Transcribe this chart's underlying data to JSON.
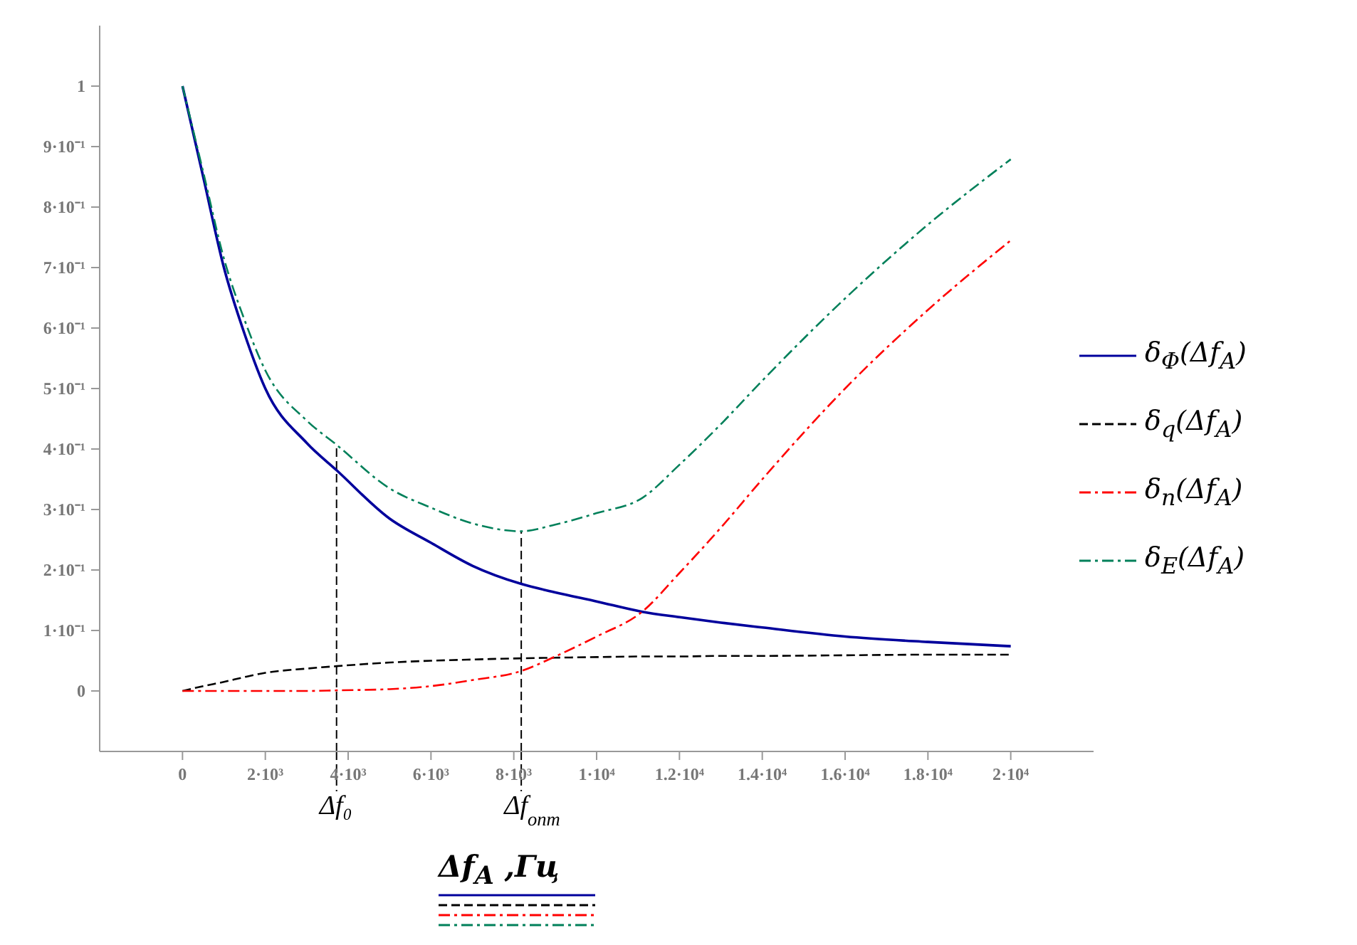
{
  "chart_data": {
    "type": "line",
    "xlabel": "Δf$_{A}$ ,Гц",
    "x": [
      0,
      500,
      1000,
      1500,
      2000,
      3000,
      3720,
      5000,
      6000,
      7000,
      8180,
      9000,
      10000,
      11100,
      12000,
      13000,
      14000,
      16000,
      18000,
      20000
    ],
    "series": [
      {
        "name": "δ$_{Φ}$(Δf$_{A}$)",
        "color": "#00009c",
        "line_style": "solid",
        "values": [
          1,
          0.85,
          0.7,
          0.59,
          0.5,
          0.41,
          0.365,
          0.285,
          0.245,
          0.207,
          0.177,
          0.163,
          0.148,
          0.131,
          0.122,
          0.113,
          0.105,
          0.09,
          0.081,
          0.074
        ]
      },
      {
        "name": "δ$_{q}$(Δf$_{A}$)",
        "color": "#000000",
        "line_style": "dashed",
        "values": [
          0,
          0.008,
          0.015,
          0.023,
          0.03,
          0.037,
          0.041,
          0.047,
          0.05,
          0.052,
          0.054,
          0.055,
          0.056,
          0.057,
          0.057,
          0.058,
          0.058,
          0.059,
          0.06,
          0.06
        ]
      },
      {
        "name": "δ$_{n}$(Δf$_{A}$)",
        "color": "#ff0000",
        "line_style": "dashdot",
        "values": [
          0,
          0,
          0,
          0,
          0,
          0,
          0.001,
          0.003,
          0.008,
          0.018,
          0.033,
          0.057,
          0.09,
          0.131,
          0.195,
          0.27,
          0.35,
          0.5,
          0.63,
          0.745
        ]
      },
      {
        "name": "δ$_{E}$(Δf$_{A}$)",
        "color": "#00805a",
        "line_style": "dashdot",
        "values": [
          1,
          0.858,
          0.715,
          0.613,
          0.53,
          0.447,
          0.407,
          0.335,
          0.303,
          0.277,
          0.264,
          0.275,
          0.294,
          0.319,
          0.374,
          0.441,
          0.513,
          0.649,
          0.771,
          0.879
        ]
      }
    ],
    "xlim": [
      -2000,
      22000
    ],
    "xticks": [
      {
        "value": 0,
        "label": "0"
      },
      {
        "value": 2000,
        "label": "2·10³"
      },
      {
        "value": 4000,
        "label": "4·10³"
      },
      {
        "value": 6000,
        "label": "6·10³"
      },
      {
        "value": 8000,
        "label": "8·10³"
      },
      {
        "value": 10000,
        "label": "1·10⁴"
      },
      {
        "value": 12000,
        "label": "1.2·10⁴"
      },
      {
        "value": 14000,
        "label": "1.4·10⁴"
      },
      {
        "value": 16000,
        "label": "1.6·10⁴"
      },
      {
        "value": 18000,
        "label": "1.8·10⁴"
      },
      {
        "value": 20000,
        "label": "2·10⁴"
      }
    ],
    "ylim": [
      -0.1,
      1.1
    ],
    "yticks": [
      {
        "value": 0,
        "label": "0"
      },
      {
        "value": 0.1,
        "label": "1·10⁻¹"
      },
      {
        "value": 0.2,
        "label": "2·10⁻¹"
      },
      {
        "value": 0.3,
        "label": "3·10⁻¹"
      },
      {
        "value": 0.4,
        "label": "4·10⁻¹"
      },
      {
        "value": 0.5,
        "label": "5·10⁻¹"
      },
      {
        "value": 0.6,
        "label": "6·10⁻¹"
      },
      {
        "value": 0.7,
        "label": "7·10⁻¹"
      },
      {
        "value": 0.8,
        "label": "8·10⁻¹"
      },
      {
        "value": 0.9,
        "label": "9·10⁻¹"
      },
      1
    ],
    "ref_lines": [
      {
        "axis": "x",
        "value": 3720,
        "label": "Δf₀",
        "color": "#000000",
        "line_style": "dashed"
      },
      {
        "axis": "x",
        "value": 8180,
        "label": "Δf$_{опт}$",
        "color": "#000000",
        "line_style": "dashed"
      }
    ],
    "grid": false,
    "legend": "right",
    "marker": "none"
  }
}
